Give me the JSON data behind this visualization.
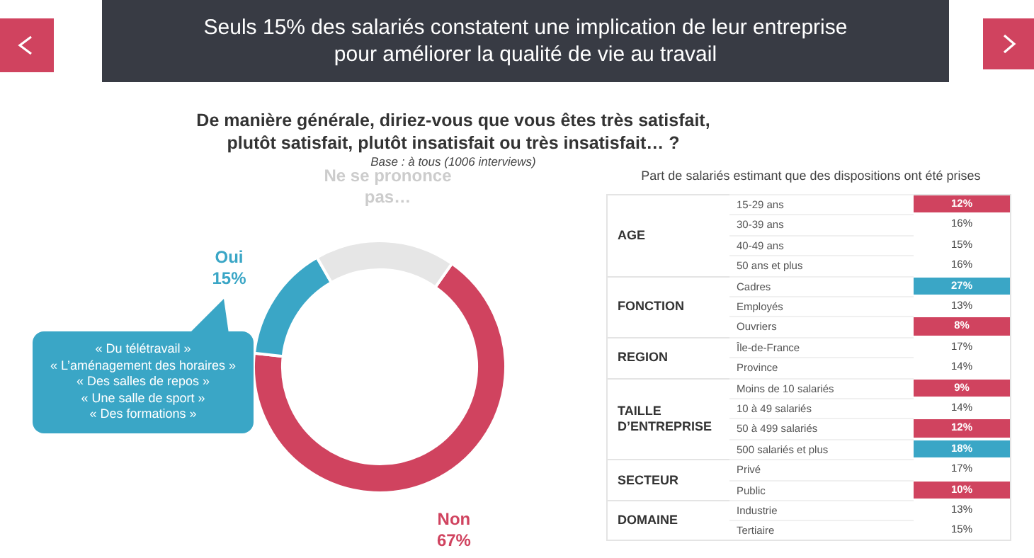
{
  "chart_data": [
    {
      "type": "donut",
      "title": "De manière générale, diriez-vous que vous êtes très satisfait, plutôt satisfait, plutôt insatisfait ou très insatisfait… ?",
      "subtitle": "Base : à tous (1006 interviews)",
      "categories": [
        "Non",
        "Oui",
        "Ne se prononce pas…"
      ],
      "values": [
        67,
        15,
        18
      ],
      "value_labels": [
        "67%",
        "15%",
        null
      ],
      "colors": [
        "#d0435f",
        "#3aa6c6",
        "#e6e6e6"
      ],
      "annotations": [
        "Seuls 15% des salariés constatent une implication de leur entreprise pour améliorer la qualité de vie au travail",
        "« Du télétravail »\n« L’aménagement des horaires »\n« Des salles de repos »\n« Une salle de sport »\n« Des formations »"
      ]
    },
    {
      "type": "other",
      "title": "Part de salariés estimant que des dispositions ont été prises",
      "categories": [
        "15-29 ans",
        "30-39 ans",
        "40-49 ans",
        "50 ans et plus",
        "Cadres",
        "Employés",
        "Ouvriers",
        "Île-de-France",
        "Province",
        "Moins de 10 salariés",
        "10 à 49 salariés",
        "50 à 499 salariés",
        "500 salariés et plus",
        "Privé",
        "Public",
        "Industrie",
        "Tertiaire"
      ],
      "value_labels": [
        "12%",
        "16%",
        "15%",
        "16%",
        "27%",
        "13%",
        "8%",
        "17%",
        "14%",
        "9%",
        "14%",
        "12%",
        "18%",
        "17%",
        "10%",
        "13%",
        "15%"
      ],
      "colors": [
        "#d0435f",
        "#ffffff",
        "#ffffff",
        "#ffffff",
        "#3aa6c6",
        "#ffffff",
        "#d0435f",
        "#ffffff",
        "#ffffff",
        "#d0435f",
        "#ffffff",
        "#d0435f",
        "#3aa6c6",
        "#ffffff",
        "#d0435f",
        "#ffffff",
        "#ffffff"
      ],
      "annotations": [
        {
          "text": "AGE",
          "y": "15-29 ans"
        },
        {
          "text": "FONCTION",
          "y": "Cadres"
        },
        {
          "text": "REGION",
          "y": "Île-de-France"
        },
        {
          "text": "TAILLE D’ENTREPRISE",
          "y": "Moins de 10 salariés"
        },
        {
          "text": "SECTEUR",
          "y": "Privé"
        },
        {
          "text": "DOMAINE",
          "y": "Industrie"
        }
      ]
    }
  ]
}
